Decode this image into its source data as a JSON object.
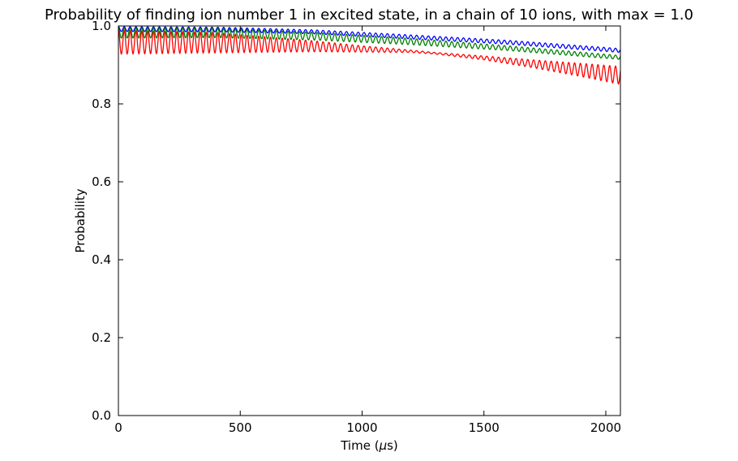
{
  "chart_data": {
    "type": "line",
    "title": "Probability of finding ion number 1 in excited state, in a chain of 10 ions, with max = 1.0",
    "xlabel": "Time (μs)",
    "xlabel_main": "Time (",
    "xlabel_unit": "μ",
    "xlabel_tail": "s)",
    "ylabel": "Probability",
    "xlim": [
      0,
      2060
    ],
    "ylim": [
      0.0,
      1.0
    ],
    "xticks": [
      0,
      500,
      1000,
      1500,
      2000
    ],
    "yticks": [
      0.0,
      0.2,
      0.4,
      0.6,
      0.8,
      1.0
    ],
    "xtick_labels": [
      "0",
      "500",
      "1000",
      "1500",
      "2000"
    ],
    "ytick_labels": [
      "0.0",
      "0.2",
      "0.4",
      "0.6",
      "0.8",
      "1.0"
    ],
    "grid": false,
    "series": [
      {
        "color": "#0000ff",
        "oscillation_period": 24,
        "envelope": [
          {
            "t": 0,
            "center": 0.992,
            "amp": 0.006
          },
          {
            "t": 400,
            "center": 0.991,
            "amp": 0.006
          },
          {
            "t": 800,
            "center": 0.985,
            "amp": 0.005
          },
          {
            "t": 1200,
            "center": 0.972,
            "amp": 0.005
          },
          {
            "t": 1600,
            "center": 0.958,
            "amp": 0.005
          },
          {
            "t": 2060,
            "center": 0.937,
            "amp": 0.005
          }
        ]
      },
      {
        "color": "#008000",
        "oscillation_period": 24,
        "envelope": [
          {
            "t": 0,
            "center": 0.982,
            "amp": 0.013
          },
          {
            "t": 400,
            "center": 0.982,
            "amp": 0.012
          },
          {
            "t": 800,
            "center": 0.974,
            "amp": 0.01
          },
          {
            "t": 1200,
            "center": 0.96,
            "amp": 0.008
          },
          {
            "t": 1600,
            "center": 0.943,
            "amp": 0.006
          },
          {
            "t": 2060,
            "center": 0.919,
            "amp": 0.005
          }
        ]
      },
      {
        "color": "#ff0000",
        "oscillation_period": 24,
        "envelope": [
          {
            "t": 0,
            "center": 0.958,
            "amp": 0.03
          },
          {
            "t": 400,
            "center": 0.957,
            "amp": 0.026
          },
          {
            "t": 800,
            "center": 0.948,
            "amp": 0.014
          },
          {
            "t": 1000,
            "center": 0.941,
            "amp": 0.008
          },
          {
            "t": 1200,
            "center": 0.935,
            "amp": 0.003
          },
          {
            "t": 1300,
            "center": 0.93,
            "amp": 0.002
          },
          {
            "t": 1500,
            "center": 0.918,
            "amp": 0.005
          },
          {
            "t": 1700,
            "center": 0.903,
            "amp": 0.01
          },
          {
            "t": 1900,
            "center": 0.887,
            "amp": 0.017
          },
          {
            "t": 2060,
            "center": 0.873,
            "amp": 0.023
          }
        ]
      }
    ]
  }
}
